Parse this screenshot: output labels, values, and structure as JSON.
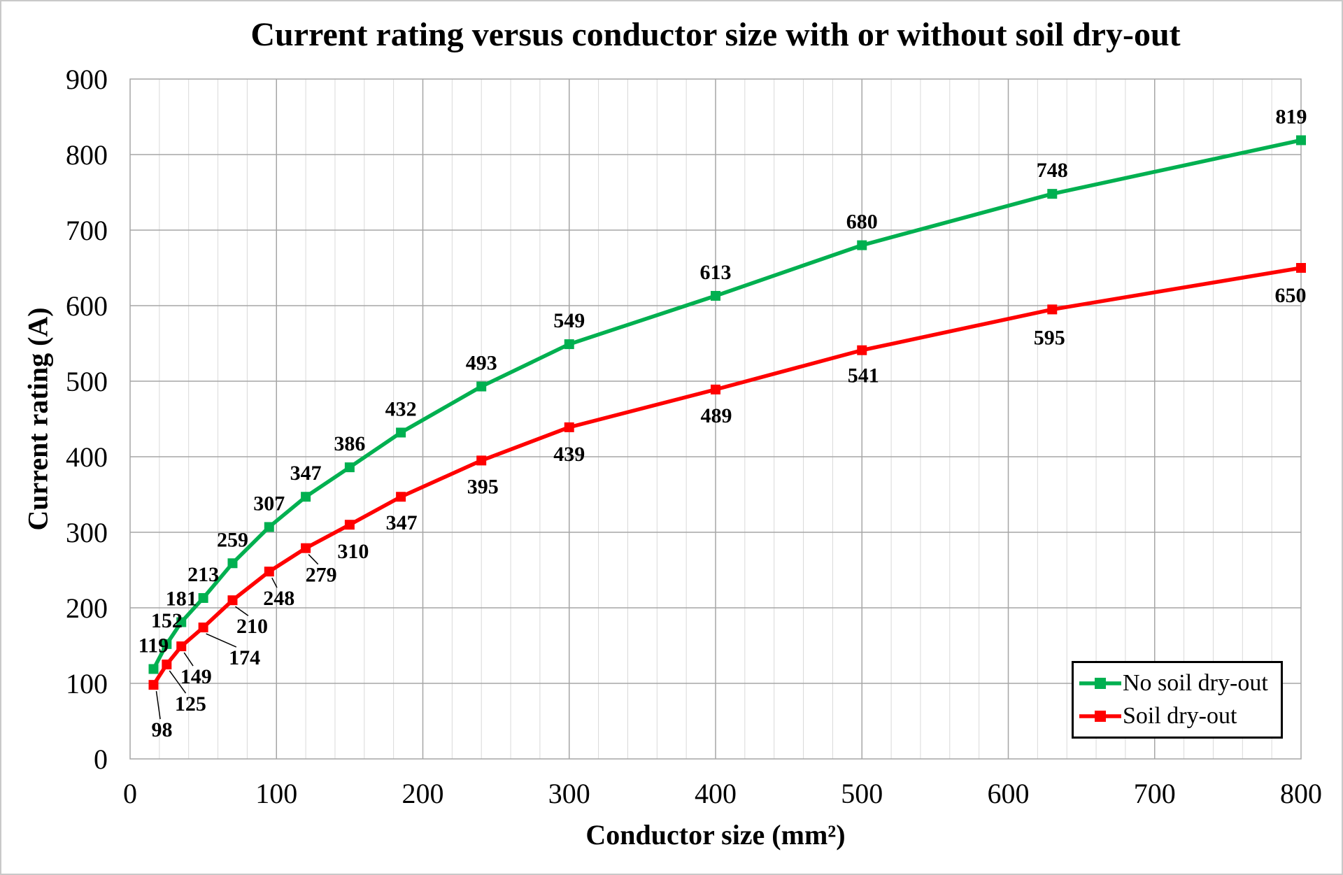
{
  "chart_data": {
    "type": "line",
    "title": "Current rating versus conductor size with or without soil dry-out",
    "xlabel": "Conductor size (mm²)",
    "ylabel": "Current rating (A)",
    "x": [
      16,
      25,
      35,
      50,
      70,
      95,
      120,
      150,
      185,
      240,
      300,
      400,
      500,
      630,
      800
    ],
    "series": [
      {
        "name": "No soil dry-out",
        "color": "#00B050",
        "values": [
          119,
          152,
          181,
          213,
          259,
          307,
          347,
          386,
          432,
          493,
          549,
          613,
          680,
          748,
          819
        ],
        "label_position": "above"
      },
      {
        "name": "Soil dry-out",
        "color": "#FF0000",
        "values": [
          98,
          125,
          149,
          174,
          210,
          248,
          279,
          310,
          347,
          395,
          439,
          489,
          541,
          595,
          650
        ],
        "label_position": "below"
      }
    ],
    "xlim": [
      0,
      800
    ],
    "ylim": [
      0,
      900
    ],
    "x_tick_step": 100,
    "x_minor_step": 20,
    "y_tick_step": 100,
    "x_tick_labels": [
      "0",
      "100",
      "200",
      "300",
      "400",
      "500",
      "600",
      "700",
      "800"
    ],
    "y_tick_labels": [
      "0",
      "100",
      "200",
      "300",
      "400",
      "500",
      "600",
      "700",
      "800",
      "900"
    ],
    "grid": true,
    "legend_position": "bottom-right"
  },
  "colors": {
    "series_green": "#00B050",
    "series_red": "#FF0000",
    "grid_major": "#a6a6a6",
    "grid_minor": "#d9d9d9",
    "plot_border": "#a6a6a6",
    "text": "#000000",
    "background": "#ffffff",
    "outer_frame": "#c9c9c9"
  }
}
